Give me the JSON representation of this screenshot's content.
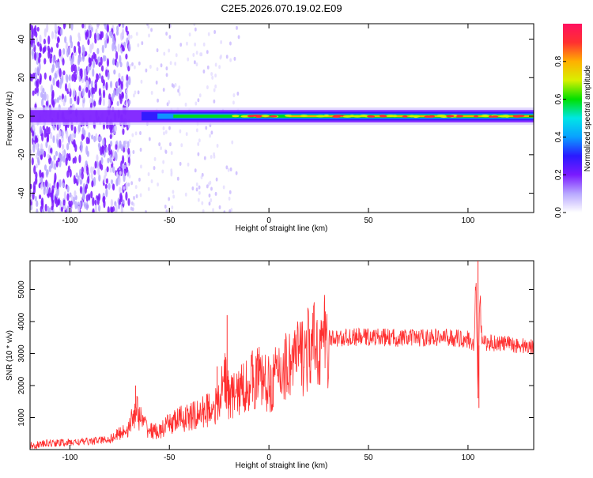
{
  "title": "C2E5.2026.070.19.02.E09",
  "chart_data": [
    {
      "type": "heatmap",
      "xlabel": "Height of straight line (km)",
      "ylabel": "Frequency (Hz)",
      "xlim": [
        -120,
        133
      ],
      "ylim": [
        -50,
        48
      ],
      "xticks": [
        -100,
        -50,
        0,
        50,
        100
      ],
      "yticks": [
        -40,
        -20,
        0,
        20,
        40
      ],
      "colorbar": {
        "label": "Normalized spectral amplitude",
        "range": [
          0,
          1
        ],
        "ticks": [
          0.0,
          0.2,
          0.4,
          0.6,
          0.8
        ],
        "tick_labels": [
          "0.0",
          "0.2",
          "0.4",
          "0.6",
          "0.8"
        ],
        "colors": [
          "#ffffff",
          "#b8a8ff",
          "#7a1aff",
          "#2a1aff",
          "#0aa0ff",
          "#00e6e6",
          "#00e000",
          "#d8f000",
          "#ffb000",
          "#ff3030",
          "#ff1060"
        ]
      },
      "band_center_hz": 0,
      "noise_region_km": [
        -120,
        -75
      ],
      "strong_band_start_km": -50
    },
    {
      "type": "line",
      "xlabel": "Height of straight line (km)",
      "ylabel": "SNR (10 * v/v)",
      "xlim": [
        -120,
        133
      ],
      "ylim": [
        0,
        5900
      ],
      "xticks": [
        -100,
        -50,
        0,
        50,
        100
      ],
      "yticks": [
        1000,
        2000,
        3000,
        4000,
        5000
      ],
      "color": "#ff3030",
      "series": [
        {
          "name": "SNR",
          "x": [
            -120,
            -110,
            -100,
            -90,
            -80,
            -75,
            -70,
            -67,
            -64,
            -60,
            -55,
            -50,
            -45,
            -40,
            -35,
            -30,
            -25,
            -22,
            -20,
            -15,
            -10,
            -5,
            0,
            5,
            10,
            15,
            20,
            25,
            30,
            40,
            50,
            60,
            70,
            80,
            90,
            100,
            103,
            104,
            105,
            106,
            107,
            110,
            120,
            133
          ],
          "y": [
            120,
            200,
            220,
            260,
            320,
            500,
            700,
            1300,
            900,
            600,
            550,
            800,
            950,
            1000,
            1100,
            1300,
            1400,
            2400,
            1600,
            1800,
            2100,
            2300,
            2000,
            2400,
            2700,
            2900,
            3100,
            3300,
            3450,
            3500,
            3520,
            3500,
            3480,
            3500,
            3500,
            3450,
            3300,
            5300,
            1600,
            4900,
            3300,
            3350,
            3300,
            3200
          ]
        }
      ],
      "spikes": [
        {
          "x": -21,
          "y": 4200
        },
        {
          "x": -26,
          "y": 2600
        },
        {
          "x": -67,
          "y": 2000
        },
        {
          "x": 105,
          "y": 5900
        },
        {
          "x": 105.5,
          "y": 1300
        }
      ]
    }
  ]
}
